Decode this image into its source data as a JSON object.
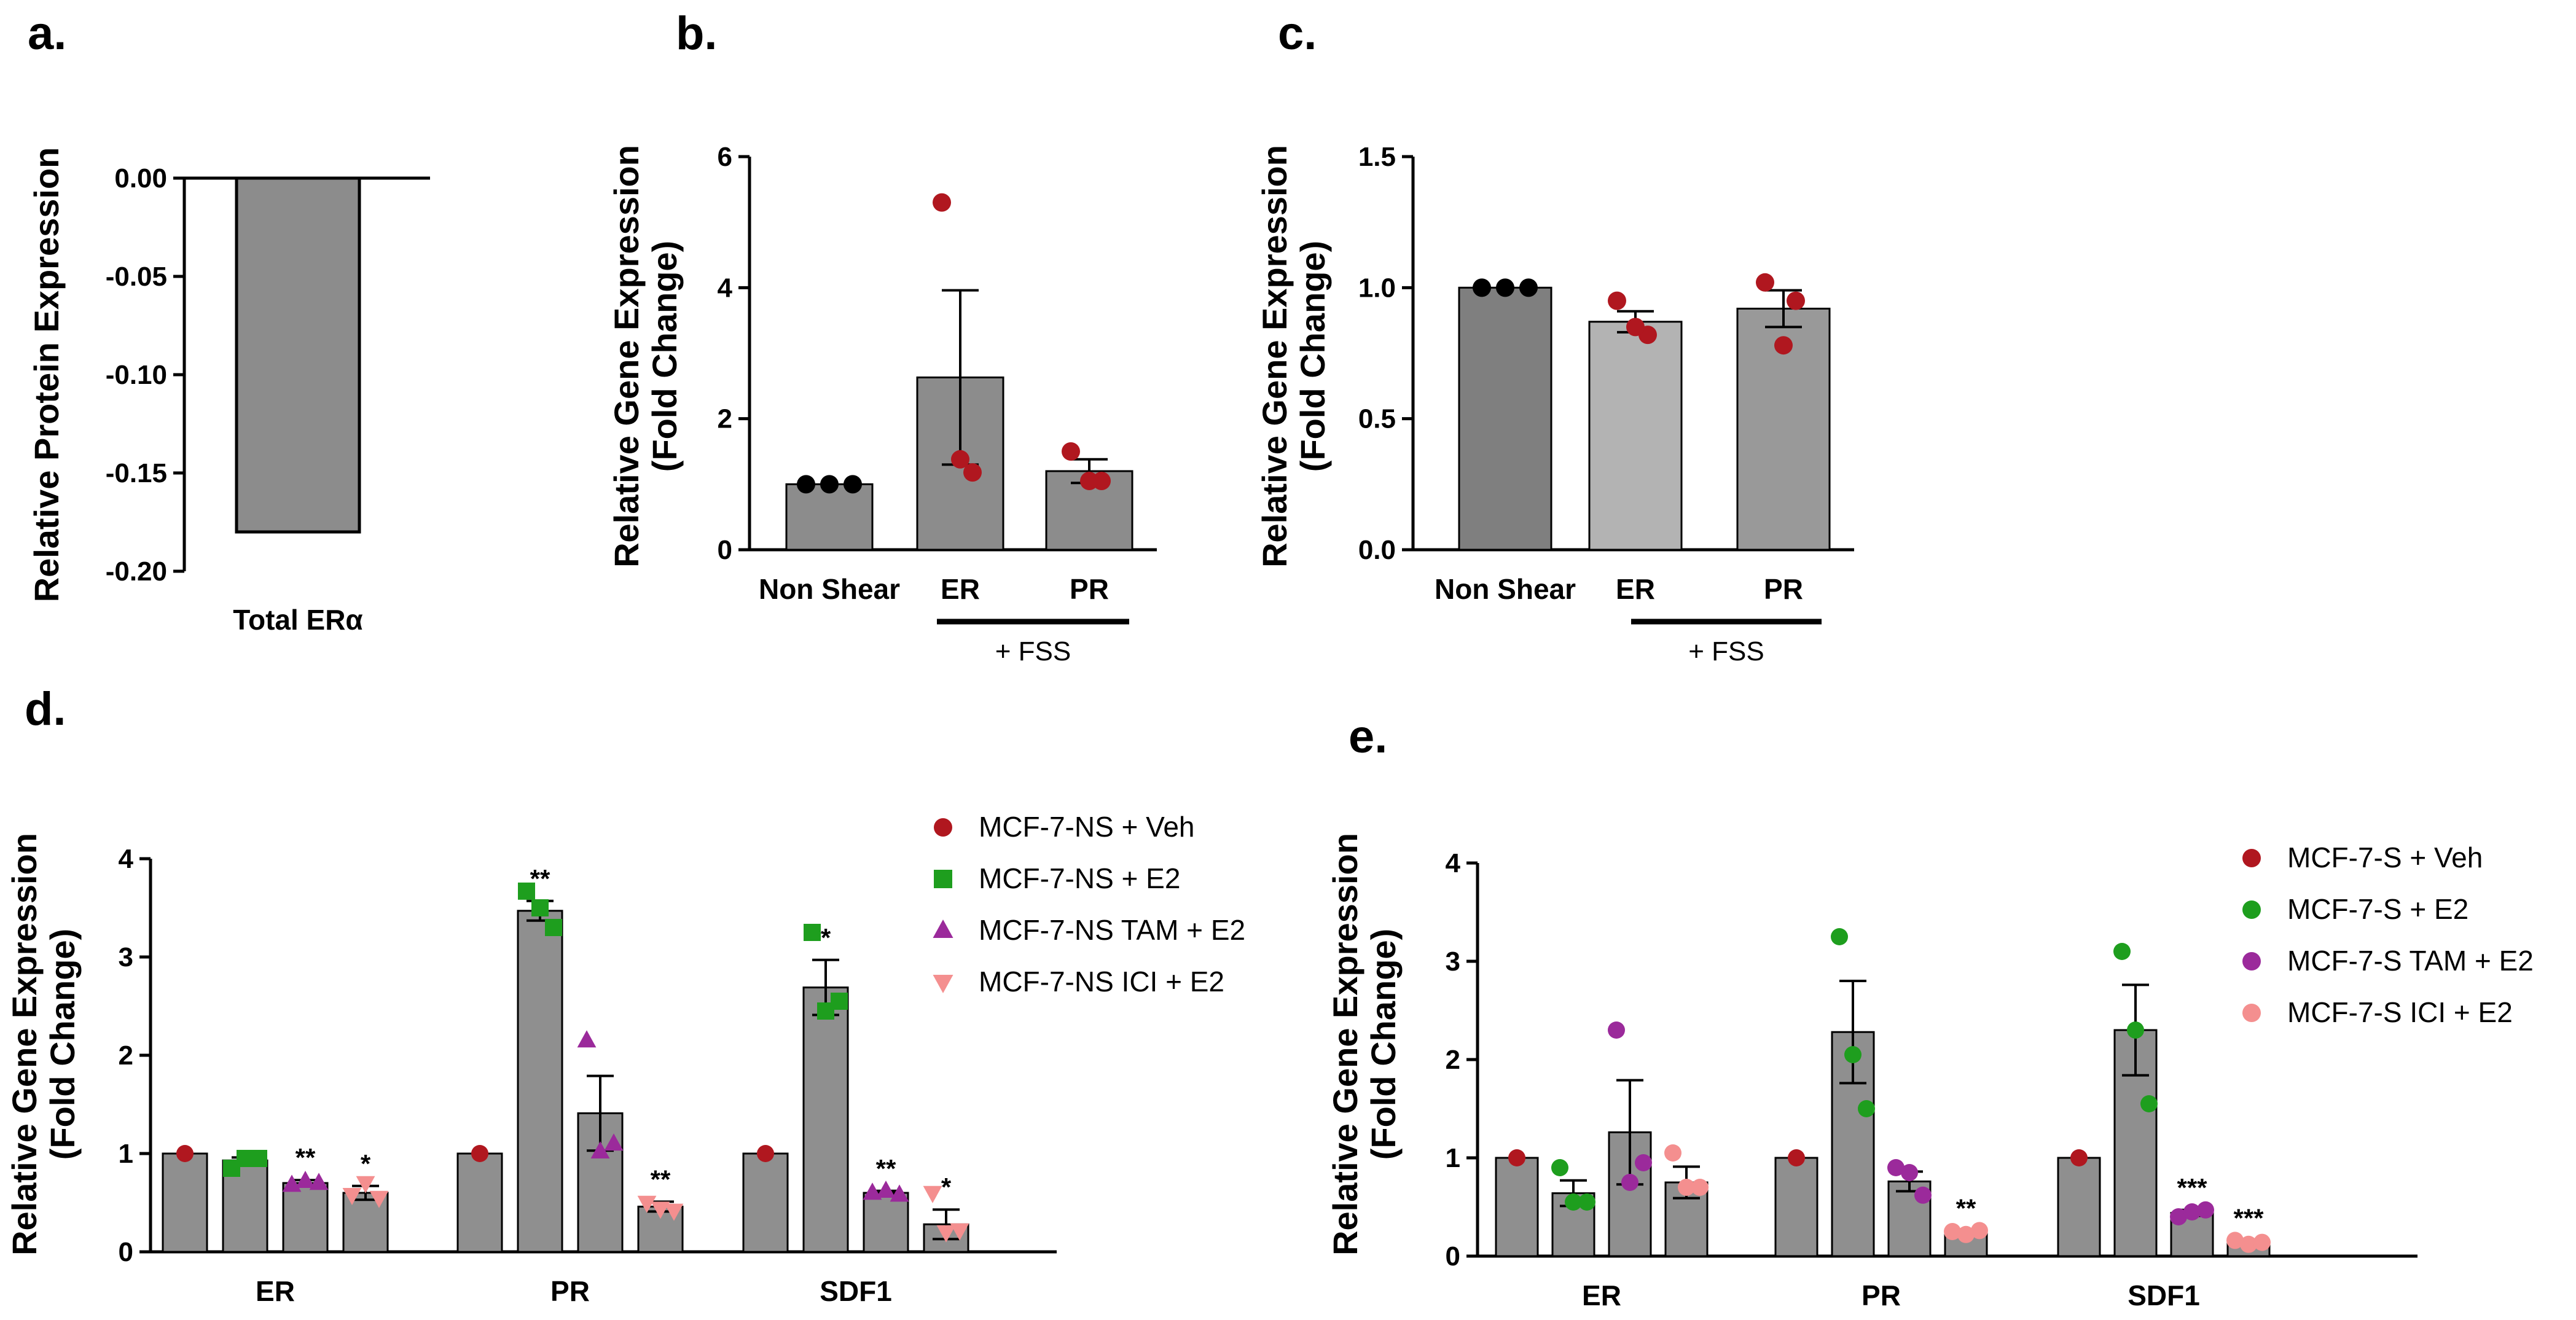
{
  "chart_data": [
    {
      "panel": "a.",
      "type": "bar",
      "categories": [
        "Total ERα"
      ],
      "values": [
        -0.18
      ],
      "ylabel": "Relative Protein Expression",
      "ylim": [
        -0.2,
        0.0
      ],
      "yticks": [
        "0.00",
        "-0.05",
        "-0.10",
        "-0.15",
        "-0.20"
      ],
      "bar_colors": [
        "#8c8c8c"
      ]
    },
    {
      "panel": "b.",
      "type": "bar",
      "categories": [
        "Non Shear",
        "ER",
        "PR"
      ],
      "values": [
        1.0,
        2.63,
        1.2
      ],
      "errors": [
        0.0,
        1.33,
        0.18
      ],
      "points": [
        [
          1.0,
          1.0,
          1.0
        ],
        [
          5.3,
          1.18,
          1.38
        ],
        [
          1.5,
          1.05,
          1.05
        ]
      ],
      "point_colors": [
        "#000000",
        "#b0171f",
        "#b0171f"
      ],
      "bar_colors": [
        "#8c8c8c",
        "#8c8c8c",
        "#8c8c8c"
      ],
      "ylabel": "Relative Gene Expression\n(Fold Change)",
      "ylim": [
        0,
        6
      ],
      "yticks": [
        "0",
        "2",
        "4",
        "6"
      ],
      "group_label": "+ FSS"
    },
    {
      "panel": "c.",
      "type": "bar",
      "categories": [
        "Non Shear",
        "ER",
        "PR"
      ],
      "values": [
        1.0,
        0.87,
        0.92
      ],
      "errors": [
        0.0,
        0.04,
        0.07
      ],
      "points": [
        [
          1.0,
          1.0,
          1.0
        ],
        [
          0.95,
          0.82,
          0.85
        ],
        [
          1.02,
          0.95,
          0.78
        ]
      ],
      "point_colors": [
        "#000000",
        "#b0171f",
        "#b0171f"
      ],
      "bar_colors": [
        "#7f7f7f",
        "#b3b3b3",
        "#999999"
      ],
      "ylabel": "Relative Gene Expression\n(Fold Change)",
      "ylim": [
        0,
        1.5
      ],
      "yticks": [
        "0.0",
        "0.5",
        "1.0",
        "1.5"
      ],
      "group_label": "+ FSS"
    },
    {
      "panel": "d.",
      "type": "bar",
      "categories": [
        "ER",
        "PR",
        "SDF1"
      ],
      "ylabel": "Relative Gene Expression\n(Fold Change)",
      "ylim": [
        0,
        4
      ],
      "yticks": [
        "0",
        "1",
        "2",
        "3",
        "4"
      ],
      "series": [
        {
          "name": "MCF-7-NS + Veh",
          "color": "#b0171f",
          "marker": "circle",
          "values": [
            1.0,
            1.0,
            1.0
          ],
          "errors": [
            0,
            0,
            0
          ],
          "points": [
            [
              1.0
            ],
            [
              1.0
            ],
            [
              1.0
            ]
          ],
          "sig": [
            "",
            "",
            ""
          ]
        },
        {
          "name": "MCF-7-NS + E2",
          "color": "#1e9e1e",
          "marker": "square",
          "values": [
            0.93,
            3.47,
            2.69
          ],
          "errors": [
            0.03,
            0.1,
            0.28
          ],
          "points": [
            [
              0.85,
              0.95,
              0.95
            ],
            [
              3.67,
              3.5,
              3.3
            ],
            [
              3.25,
              2.45,
              2.55
            ]
          ],
          "sig": [
            "",
            "**",
            "*"
          ]
        },
        {
          "name": "MCF-7-NS TAM + E2",
          "color": "#9b2a9b",
          "marker": "triangle",
          "values": [
            0.7,
            1.41,
            0.6
          ],
          "errors": [
            0.03,
            0.38,
            0.02
          ],
          "points": [
            [
              0.68,
              0.72,
              0.7
            ],
            [
              2.15,
              1.02,
              1.1
            ],
            [
              0.6,
              0.62,
              0.58
            ]
          ],
          "sig": [
            "**",
            "",
            "**"
          ]
        },
        {
          "name": "MCF-7-NS ICI + E2",
          "color": "#f48f8f",
          "marker": "triangle-down",
          "values": [
            0.6,
            0.46,
            0.28
          ],
          "errors": [
            0.07,
            0.05,
            0.15
          ],
          "points": [
            [
              0.58,
              0.7,
              0.55
            ],
            [
              0.5,
              0.44,
              0.42
            ],
            [
              0.6,
              0.2,
              0.22
            ]
          ],
          "sig": [
            "*",
            "**",
            "*"
          ]
        }
      ]
    },
    {
      "panel": "e.",
      "type": "bar",
      "categories": [
        "ER",
        "PR",
        "SDF1"
      ],
      "ylabel": "Relative Gene Expression\n(Fold Change)",
      "ylim": [
        0,
        4
      ],
      "yticks": [
        "0",
        "1",
        "2",
        "3",
        "4"
      ],
      "series": [
        {
          "name": "MCF-7-S + Veh",
          "color": "#b0171f",
          "marker": "circle",
          "values": [
            1.0,
            1.0,
            1.0
          ],
          "errors": [
            0,
            0,
            0
          ],
          "points": [
            [
              1.0
            ],
            [
              1.0
            ],
            [
              1.0
            ]
          ],
          "sig": [
            "",
            "",
            ""
          ]
        },
        {
          "name": "MCF-7-S + E2",
          "color": "#1e9e1e",
          "marker": "circle",
          "values": [
            0.64,
            2.28,
            2.3
          ],
          "errors": [
            0.13,
            0.52,
            0.46
          ],
          "points": [
            [
              0.9,
              0.55,
              0.55
            ],
            [
              3.25,
              2.05,
              1.5
            ],
            [
              3.1,
              2.3,
              1.55
            ]
          ],
          "sig": [
            "",
            "",
            ""
          ]
        },
        {
          "name": "MCF-7-S TAM + E2",
          "color": "#9b2a9b",
          "marker": "circle",
          "values": [
            1.26,
            0.76,
            0.44
          ],
          "errors": [
            0.53,
            0.1,
            0.03
          ],
          "points": [
            [
              2.3,
              0.75,
              0.95
            ],
            [
              0.9,
              0.85,
              0.62
            ],
            [
              0.4,
              0.45,
              0.47
            ]
          ],
          "sig": [
            "",
            "",
            "***"
          ]
        },
        {
          "name": "MCF-7-S ICI + E2",
          "color": "#f48f8f",
          "marker": "circle",
          "values": [
            0.75,
            0.24,
            0.14
          ],
          "errors": [
            0.16,
            0.02,
            0.02
          ],
          "points": [
            [
              1.05,
              0.7,
              0.7
            ],
            [
              0.25,
              0.22,
              0.26
            ],
            [
              0.16,
              0.12,
              0.14
            ]
          ],
          "sig": [
            "",
            "**",
            "***"
          ]
        }
      ]
    }
  ]
}
